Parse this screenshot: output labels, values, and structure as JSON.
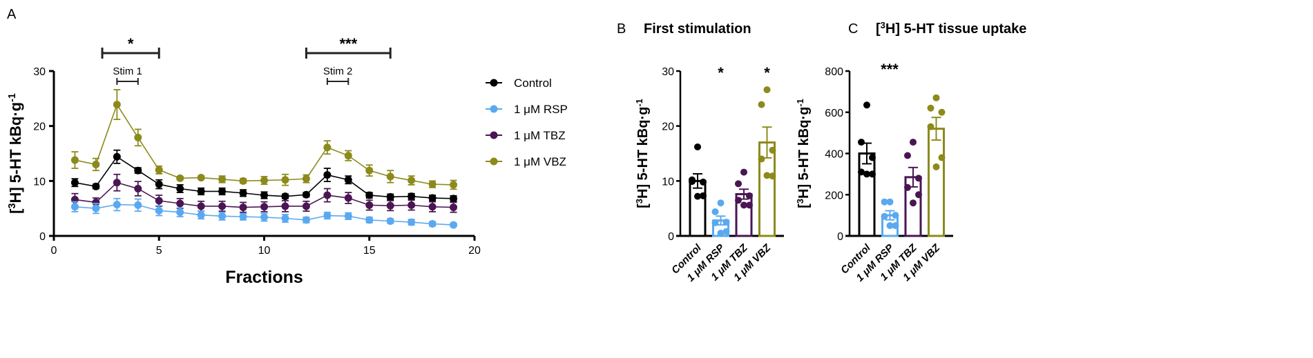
{
  "colors": {
    "Control": "#000000",
    "1 μM RSP": "#5aa9f0",
    "1 μM TBZ": "#4a1553",
    "1 μM VBZ": "#8c8a1a"
  },
  "chart_data": [
    {
      "panel": "A",
      "type": "line",
      "xlabel": "Fractions",
      "ylabel": "[3H] 5-HT kBq·g-1",
      "xlim": [
        0,
        20
      ],
      "ylim": [
        0,
        30
      ],
      "xticks": [
        0,
        5,
        10,
        15,
        20
      ],
      "yticks": [
        0,
        10,
        20,
        30
      ],
      "legend_position": "right",
      "x": [
        1,
        2,
        3,
        4,
        5,
        6,
        7,
        8,
        9,
        10,
        11,
        12,
        13,
        14,
        15,
        16,
        17,
        18,
        19
      ],
      "series": [
        {
          "name": "Control",
          "values": [
            9.7,
            9.0,
            14.4,
            11.9,
            9.4,
            8.6,
            8.1,
            8.1,
            7.8,
            7.4,
            7.2,
            7.5,
            11.1,
            10.2,
            7.4,
            7.1,
            7.2,
            6.9,
            6.8
          ],
          "sem": [
            0.7,
            0.4,
            1.2,
            0.5,
            0.8,
            0.7,
            0.6,
            0.6,
            0.6,
            0.6,
            0.4,
            0.4,
            1.2,
            0.7,
            0.5,
            0.5,
            0.5,
            0.5,
            0.5
          ]
        },
        {
          "name": "1 μM RSP",
          "values": [
            5.3,
            5.0,
            5.7,
            5.6,
            4.6,
            4.3,
            3.8,
            3.6,
            3.5,
            3.4,
            3.2,
            2.9,
            3.7,
            3.6,
            2.9,
            2.7,
            2.5,
            2.2,
            2.0
          ],
          "sem": [
            0.9,
            0.9,
            1.1,
            1.1,
            0.9,
            0.8,
            0.7,
            0.7,
            0.6,
            0.7,
            0.7,
            0.5,
            0.6,
            0.6,
            0.5,
            0.4,
            0.5,
            0.4,
            0.3
          ]
        },
        {
          "name": "1 μM TBZ",
          "values": [
            6.6,
            6.1,
            9.7,
            8.6,
            6.4,
            5.9,
            5.4,
            5.4,
            5.2,
            5.3,
            5.4,
            5.4,
            7.4,
            6.9,
            5.6,
            5.5,
            5.6,
            5.3,
            5.2
          ],
          "sem": [
            1.1,
            0.8,
            1.5,
            1.3,
            1.0,
            0.9,
            0.9,
            0.9,
            0.9,
            0.9,
            1.0,
            0.9,
            1.2,
            1.0,
            0.9,
            0.9,
            0.9,
            0.9,
            0.9
          ]
        },
        {
          "name": "1 μM VBZ",
          "values": [
            13.8,
            13.0,
            23.9,
            17.9,
            12.0,
            10.5,
            10.6,
            10.3,
            10.0,
            10.1,
            10.2,
            10.4,
            16.1,
            14.6,
            11.9,
            10.8,
            10.1,
            9.4,
            9.3
          ],
          "sem": [
            1.5,
            1.1,
            2.7,
            1.5,
            0.7,
            0.3,
            0.3,
            0.6,
            0.4,
            0.7,
            1.0,
            0.7,
            1.2,
            0.9,
            1.0,
            1.1,
            0.8,
            0.6,
            0.8
          ]
        }
      ],
      "annotations": [
        {
          "text": "*",
          "x_range": [
            2.3,
            5.0
          ]
        },
        {
          "text": "***",
          "x_range": [
            12.0,
            16.0
          ]
        },
        {
          "text": "Stim 1",
          "x_range": [
            3,
            4
          ]
        },
        {
          "text": "Stim 2",
          "x_range": [
            13,
            14
          ]
        }
      ]
    },
    {
      "panel": "B",
      "type": "bar",
      "title": "First stimulation",
      "ylabel": "[3H] 5-HT kBq·g-1",
      "ylim": [
        0,
        30
      ],
      "yticks": [
        0,
        10,
        20,
        30
      ],
      "categories": [
        "Control",
        "1 μM RSP",
        "1 μM TBZ",
        "1 μM VBZ"
      ],
      "values": [
        10.0,
        2.8,
        7.6,
        17.0
      ],
      "sem": [
        1.3,
        0.8,
        0.9,
        2.8
      ],
      "points": [
        [
          16.2,
          10.2,
          9.8,
          9.9,
          7.3,
          7.2
        ],
        [
          6.0,
          4.4,
          2.5,
          2.4,
          0.8,
          0.5
        ],
        [
          11.6,
          9.5,
          7.3,
          6.5,
          5.6,
          5.6
        ],
        [
          26.6,
          23.9,
          15.6,
          14.0,
          10.9,
          11.0
        ]
      ],
      "significance": [
        "",
        "*",
        "",
        "*"
      ]
    },
    {
      "panel": "C",
      "type": "bar",
      "title": "[3H] 5-HT tissue uptake",
      "ylabel": "[3H] 5-HT kBq·g-1",
      "ylim": [
        0,
        800
      ],
      "yticks": [
        0,
        200,
        400,
        600,
        800
      ],
      "categories": [
        "Control",
        "1 μM RSP",
        "1 μM TBZ",
        "1 μM VBZ"
      ],
      "values": [
        400,
        100,
        285,
        520
      ],
      "sem": [
        50,
        22,
        47,
        55
      ],
      "points": [
        [
          635,
          455,
          380,
          310,
          300,
          300
        ],
        [
          165,
          165,
          100,
          95,
          50,
          50
        ],
        [
          455,
          390,
          280,
          235,
          200,
          160
        ],
        [
          670,
          620,
          600,
          530,
          380,
          335
        ]
      ],
      "significance_label": "***"
    }
  ]
}
